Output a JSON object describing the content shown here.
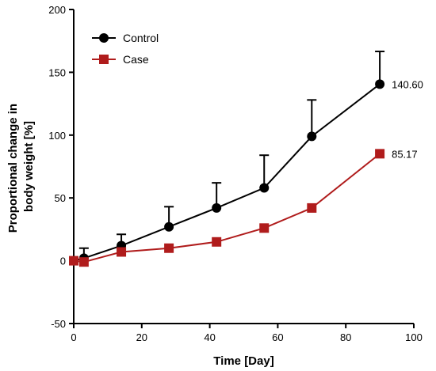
{
  "chart_data": {
    "type": "line",
    "title": "",
    "xlabel": "Time [Day]",
    "ylabel_lines": [
      "Proportional change in",
      "body weight [%]"
    ],
    "xlim": [
      0,
      100
    ],
    "ylim": [
      -50,
      200
    ],
    "xticks": [
      0,
      20,
      40,
      60,
      80,
      100
    ],
    "yticks": [
      -50,
      0,
      50,
      100,
      150,
      200
    ],
    "grid": false,
    "legend_position": "top-left",
    "series": [
      {
        "name": "Control",
        "color": "#000000",
        "marker": "circle",
        "x": [
          0,
          3,
          14,
          28,
          42,
          56,
          70,
          90
        ],
        "y": [
          0,
          2,
          12,
          27,
          42,
          58,
          99,
          140.6
        ],
        "error_upper": [
          0,
          8,
          9,
          16,
          20,
          26,
          29,
          26
        ]
      },
      {
        "name": "Case",
        "color": "#b01c1c",
        "marker": "square",
        "x": [
          0,
          3,
          14,
          28,
          42,
          56,
          70,
          90
        ],
        "y": [
          0,
          -1,
          7,
          10,
          15,
          26,
          42,
          85.17
        ],
        "error_upper": [
          0,
          0,
          0,
          0,
          0,
          0,
          0,
          0
        ]
      }
    ],
    "annotations": [
      {
        "text": "140.60",
        "series": 0,
        "index": 7
      },
      {
        "text": "85.17",
        "series": 1,
        "index": 7
      }
    ]
  }
}
